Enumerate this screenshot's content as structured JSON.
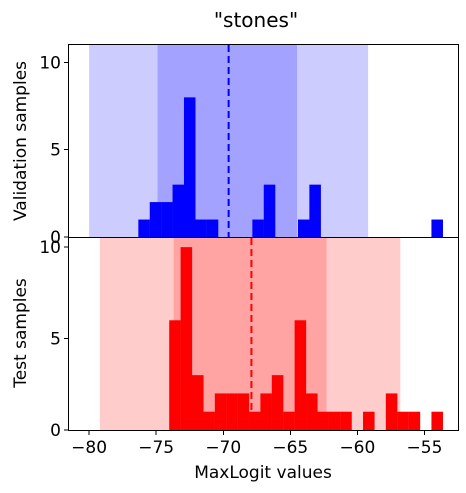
{
  "chart_data": {
    "type": "bar",
    "title": "\"stones\"",
    "xlabel": "MaxLogit values",
    "xlim": [
      -81.5,
      -52.5
    ],
    "xticks": [
      -80,
      -75,
      -70,
      -65,
      -60,
      -55
    ],
    "bin_width": 0.86,
    "panels": [
      {
        "name": "validation",
        "ylabel": "Validation samples",
        "ylim": [
          0,
          11
        ],
        "yticks": [
          0,
          5,
          10
        ],
        "color": "#0000ff",
        "band_color": "#0000ff",
        "bands": [
          {
            "range": [
              -80.0,
              -59.2
            ],
            "opacity": 0.2
          },
          {
            "range": [
              -74.9,
              -64.5
            ],
            "opacity": 0.2
          }
        ],
        "mean": -69.6,
        "bins": [
          {
            "x": -75.9,
            "count": 1
          },
          {
            "x": -75.05,
            "count": 2
          },
          {
            "x": -74.2,
            "count": 2
          },
          {
            "x": -73.35,
            "count": 3
          },
          {
            "x": -72.5,
            "count": 8
          },
          {
            "x": -71.65,
            "count": 1
          },
          {
            "x": -70.8,
            "count": 1
          },
          {
            "x": -67.4,
            "count": 1
          },
          {
            "x": -66.55,
            "count": 3
          },
          {
            "x": -64.0,
            "count": 1
          },
          {
            "x": -63.15,
            "count": 3
          },
          {
            "x": -54.05,
            "count": 1
          }
        ]
      },
      {
        "name": "test",
        "ylabel": "Test samples",
        "ylim": [
          0,
          10.5
        ],
        "yticks": [
          0,
          5,
          10
        ],
        "color": "#ff0000",
        "band_color": "#ff0000",
        "bands": [
          {
            "range": [
              -79.2,
              -56.8
            ],
            "opacity": 0.2
          },
          {
            "range": [
              -73.7,
              -62.3
            ],
            "opacity": 0.2
          }
        ],
        "mean": -67.9,
        "bins": [
          {
            "x": -73.6,
            "count": 6
          },
          {
            "x": -72.75,
            "count": 10
          },
          {
            "x": -71.9,
            "count": 3
          },
          {
            "x": -71.05,
            "count": 1
          },
          {
            "x": -70.2,
            "count": 2
          },
          {
            "x": -69.35,
            "count": 2
          },
          {
            "x": -68.5,
            "count": 2
          },
          {
            "x": -67.65,
            "count": 1
          },
          {
            "x": -66.8,
            "count": 2
          },
          {
            "x": -65.95,
            "count": 3
          },
          {
            "x": -65.1,
            "count": 1
          },
          {
            "x": -64.25,
            "count": 6
          },
          {
            "x": -63.4,
            "count": 2
          },
          {
            "x": -62.55,
            "count": 1
          },
          {
            "x": -61.7,
            "count": 1
          },
          {
            "x": -60.85,
            "count": 1
          },
          {
            "x": -59.15,
            "count": 1
          },
          {
            "x": -57.45,
            "count": 2
          },
          {
            "x": -56.6,
            "count": 1
          },
          {
            "x": -55.75,
            "count": 1
          },
          {
            "x": -54.05,
            "count": 1
          }
        ]
      }
    ]
  }
}
